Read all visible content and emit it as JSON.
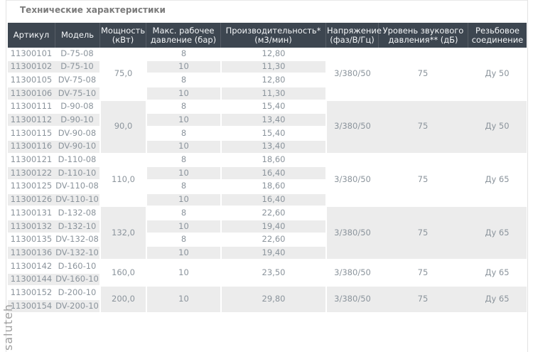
{
  "page": {
    "title": "Технические характеристики",
    "watermark": "saluteh"
  },
  "colors": {
    "header_bg": "#3d4650",
    "header_text": "#f4f6f8",
    "row_white": "#ffffff",
    "stripe": "#ececec",
    "body_text": "#8b949c",
    "border": "#e2e2e2"
  },
  "table": {
    "headers": [
      "Артикул",
      "Модель",
      "Мощность\n(кВт)",
      "Макс. рабочее\nдавление (бар)",
      "Производительность*\n(м3/мин)",
      "Напряжение\n(фаз/В/Гц)",
      "Уровень звукового\nдавления** (дБ)",
      "Резьбовое\nсоединение"
    ],
    "groups": [
      {
        "power": "75,0",
        "voltage": "3/380/50",
        "noise": "75",
        "thread": "Ду 50",
        "rows": [
          {
            "article": "11300101",
            "model": "D-75-08",
            "pressure": "8",
            "capacity": "12,80"
          },
          {
            "article": "11300102",
            "model": "D-75-10",
            "pressure": "10",
            "capacity": "11,30"
          },
          {
            "article": "11300105",
            "model": "DV-75-08",
            "pressure": "8",
            "capacity": "12,80"
          },
          {
            "article": "11300106",
            "model": "DV-75-10",
            "pressure": "10",
            "capacity": "11,30"
          }
        ]
      },
      {
        "power": "90,0",
        "voltage": "3/380/50",
        "noise": "75",
        "thread": "Ду 50",
        "rows": [
          {
            "article": "11300111",
            "model": "D-90-08",
            "pressure": "8",
            "capacity": "15,40"
          },
          {
            "article": "11300112",
            "model": "D-90-10",
            "pressure": "10",
            "capacity": "13,40"
          },
          {
            "article": "11300115",
            "model": "DV-90-08",
            "pressure": "8",
            "capacity": "15,40"
          },
          {
            "article": "11300116",
            "model": "DV-90-10",
            "pressure": "10",
            "capacity": "13,40"
          }
        ]
      },
      {
        "power": "110,0",
        "voltage": "3/380/50",
        "noise": "75",
        "thread": "Ду 65",
        "rows": [
          {
            "article": "11300121",
            "model": "D-110-08",
            "pressure": "8",
            "capacity": "18,60"
          },
          {
            "article": "11300122",
            "model": "D-110-10",
            "pressure": "10",
            "capacity": "16,40"
          },
          {
            "article": "11300125",
            "model": "DV-110-08",
            "pressure": "8",
            "capacity": "18,60"
          },
          {
            "article": "11300126",
            "model": "DV-110-10",
            "pressure": "10",
            "capacity": "16,40"
          }
        ]
      },
      {
        "power": "132,0",
        "voltage": "3/380/50",
        "noise": "75",
        "thread": "Ду 65",
        "rows": [
          {
            "article": "11300131",
            "model": "D-132-08",
            "pressure": "8",
            "capacity": "22,60"
          },
          {
            "article": "11300132",
            "model": "D-132-10",
            "pressure": "10",
            "capacity": "19,40"
          },
          {
            "article": "11300135",
            "model": "DV-132-08",
            "pressure": "8",
            "capacity": "22,60"
          },
          {
            "article": "11300136",
            "model": "DV-132-10",
            "pressure": "10",
            "capacity": "19,40"
          }
        ]
      },
      {
        "power": "160,0",
        "voltage": "3/380/50",
        "noise": "75",
        "thread": "Ду 65",
        "merged_pressure": "10",
        "merged_capacity": "23,50",
        "rows": [
          {
            "article": "11300142",
            "model": "D-160-10"
          },
          {
            "article": "11300144",
            "model": "DV-160-10"
          }
        ]
      },
      {
        "power": "200,0",
        "voltage": "3/380/50",
        "noise": "75",
        "thread": "Ду 65",
        "merged_pressure": "10",
        "merged_capacity": "29,80",
        "rows": [
          {
            "article": "11300152",
            "model": "D-200-10"
          },
          {
            "article": "11300154",
            "model": "DV-200-10"
          }
        ]
      }
    ]
  }
}
